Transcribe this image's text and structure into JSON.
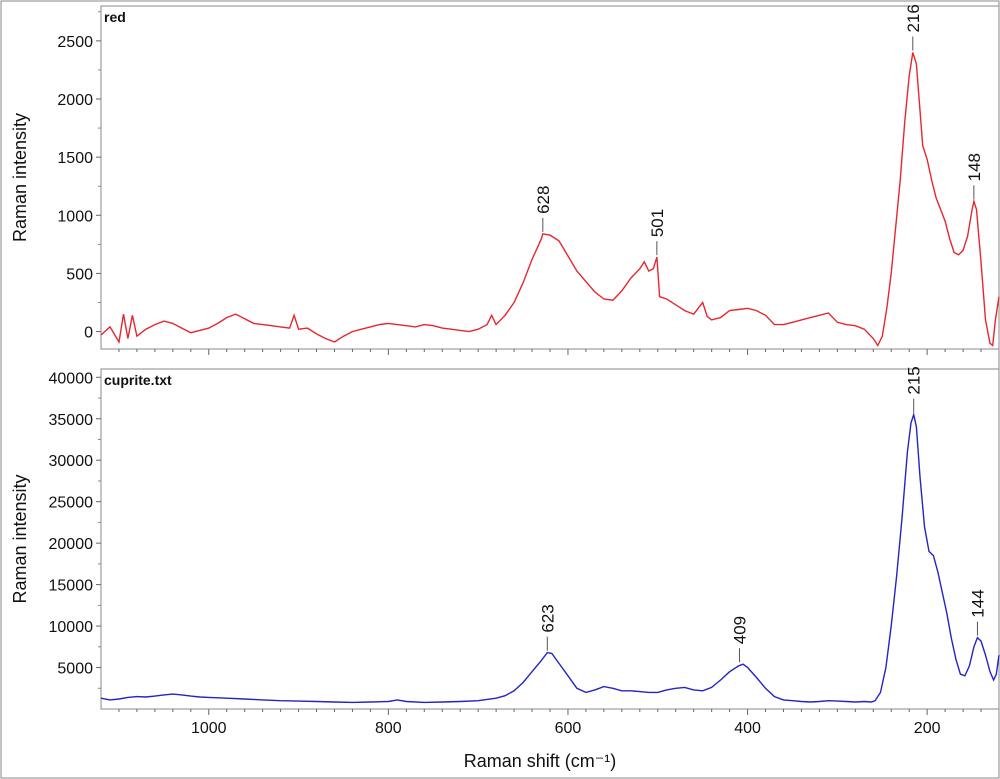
{
  "chart_data": [
    {
      "type": "line",
      "title": "red",
      "xlabel": "",
      "ylabel": "Raman intensity",
      "xlim": [
        1120,
        120
      ],
      "ylim": [
        -150,
        2800
      ],
      "x_reversed": true,
      "xticks": [
        1000,
        800,
        600,
        400,
        200
      ],
      "yticks": [
        0,
        500,
        1000,
        1500,
        2000,
        2500
      ],
      "ytick_labels": [
        "0",
        "500",
        "1000",
        "1500",
        "2000",
        "2500"
      ],
      "series": [
        {
          "color": "#e8262e",
          "points": [
            [
              1120,
              -30
            ],
            [
              1110,
              40
            ],
            [
              1100,
              -90
            ],
            [
              1095,
              150
            ],
            [
              1090,
              -60
            ],
            [
              1085,
              140
            ],
            [
              1080,
              -40
            ],
            [
              1070,
              20
            ],
            [
              1060,
              60
            ],
            [
              1050,
              90
            ],
            [
              1040,
              70
            ],
            [
              1030,
              30
            ],
            [
              1020,
              -10
            ],
            [
              1010,
              10
            ],
            [
              1000,
              30
            ],
            [
              990,
              70
            ],
            [
              980,
              120
            ],
            [
              970,
              150
            ],
            [
              960,
              110
            ],
            [
              950,
              70
            ],
            [
              940,
              60
            ],
            [
              930,
              50
            ],
            [
              920,
              40
            ],
            [
              910,
              30
            ],
            [
              905,
              140
            ],
            [
              900,
              20
            ],
            [
              890,
              30
            ],
            [
              880,
              -20
            ],
            [
              870,
              -60
            ],
            [
              860,
              -90
            ],
            [
              850,
              -40
            ],
            [
              840,
              0
            ],
            [
              830,
              20
            ],
            [
              820,
              40
            ],
            [
              810,
              60
            ],
            [
              800,
              70
            ],
            [
              790,
              60
            ],
            [
              780,
              50
            ],
            [
              770,
              40
            ],
            [
              760,
              60
            ],
            [
              750,
              50
            ],
            [
              740,
              30
            ],
            [
              730,
              20
            ],
            [
              720,
              10
            ],
            [
              710,
              0
            ],
            [
              700,
              20
            ],
            [
              690,
              60
            ],
            [
              685,
              140
            ],
            [
              680,
              60
            ],
            [
              670,
              140
            ],
            [
              660,
              250
            ],
            [
              650,
              420
            ],
            [
              640,
              620
            ],
            [
              630,
              790
            ],
            [
              628,
              840
            ],
            [
              620,
              830
            ],
            [
              610,
              780
            ],
            [
              600,
              650
            ],
            [
              590,
              520
            ],
            [
              580,
              430
            ],
            [
              570,
              340
            ],
            [
              560,
              280
            ],
            [
              550,
              270
            ],
            [
              540,
              350
            ],
            [
              530,
              460
            ],
            [
              520,
              540
            ],
            [
              515,
              600
            ],
            [
              510,
              520
            ],
            [
              505,
              540
            ],
            [
              501,
              640
            ],
            [
              498,
              300
            ],
            [
              490,
              280
            ],
            [
              480,
              230
            ],
            [
              470,
              180
            ],
            [
              460,
              150
            ],
            [
              450,
              250
            ],
            [
              445,
              130
            ],
            [
              440,
              100
            ],
            [
              430,
              120
            ],
            [
              420,
              180
            ],
            [
              410,
              190
            ],
            [
              400,
              200
            ],
            [
              390,
              180
            ],
            [
              380,
              140
            ],
            [
              370,
              60
            ],
            [
              360,
              60
            ],
            [
              350,
              80
            ],
            [
              340,
              100
            ],
            [
              330,
              120
            ],
            [
              320,
              140
            ],
            [
              310,
              160
            ],
            [
              300,
              80
            ],
            [
              290,
              60
            ],
            [
              280,
              50
            ],
            [
              270,
              20
            ],
            [
              260,
              -60
            ],
            [
              255,
              -120
            ],
            [
              250,
              -40
            ],
            [
              245,
              200
            ],
            [
              240,
              500
            ],
            [
              235,
              900
            ],
            [
              230,
              1300
            ],
            [
              225,
              1800
            ],
            [
              220,
              2200
            ],
            [
              216,
              2400
            ],
            [
              212,
              2300
            ],
            [
              208,
              1900
            ],
            [
              205,
              1600
            ],
            [
              200,
              1480
            ],
            [
              195,
              1300
            ],
            [
              190,
              1150
            ],
            [
              185,
              1050
            ],
            [
              180,
              950
            ],
            [
              175,
              800
            ],
            [
              170,
              680
            ],
            [
              165,
              660
            ],
            [
              160,
              700
            ],
            [
              155,
              820
            ],
            [
              150,
              1050
            ],
            [
              148,
              1120
            ],
            [
              145,
              1050
            ],
            [
              140,
              600
            ],
            [
              135,
              100
            ],
            [
              130,
              -100
            ],
            [
              127,
              -120
            ],
            [
              124,
              100
            ],
            [
              120,
              300
            ]
          ]
        }
      ],
      "annotations": [
        {
          "x": 628,
          "y": 840,
          "text": "628"
        },
        {
          "x": 501,
          "y": 640,
          "text": "501"
        },
        {
          "x": 216,
          "y": 2400,
          "text": "216"
        },
        {
          "x": 148,
          "y": 1120,
          "text": "148"
        }
      ]
    },
    {
      "type": "line",
      "title": "cuprite.txt",
      "xlabel": "Raman shift (cm⁻¹)",
      "ylabel": "Raman intensity",
      "xlim": [
        1120,
        120
      ],
      "ylim": [
        0,
        41000
      ],
      "x_reversed": true,
      "xticks": [
        1000,
        800,
        600,
        400,
        200
      ],
      "xtick_labels": [
        "1000",
        "800",
        "600",
        "400",
        "200"
      ],
      "yticks": [
        5000,
        10000,
        15000,
        20000,
        25000,
        30000,
        35000,
        40000
      ],
      "ytick_labels": [
        "5000",
        "10000",
        "15000",
        "20000",
        "25000",
        "30000",
        "35000",
        "40000"
      ],
      "series": [
        {
          "color": "#2323c8",
          "points": [
            [
              1120,
              1300
            ],
            [
              1110,
              1100
            ],
            [
              1100,
              1200
            ],
            [
              1090,
              1400
            ],
            [
              1080,
              1500
            ],
            [
              1070,
              1450
            ],
            [
              1060,
              1550
            ],
            [
              1050,
              1700
            ],
            [
              1040,
              1800
            ],
            [
              1030,
              1700
            ],
            [
              1020,
              1550
            ],
            [
              1010,
              1450
            ],
            [
              1000,
              1400
            ],
            [
              980,
              1300
            ],
            [
              960,
              1200
            ],
            [
              940,
              1100
            ],
            [
              920,
              1000
            ],
            [
              900,
              950
            ],
            [
              880,
              900
            ],
            [
              860,
              850
            ],
            [
              840,
              800
            ],
            [
              820,
              850
            ],
            [
              800,
              900
            ],
            [
              790,
              1100
            ],
            [
              780,
              900
            ],
            [
              760,
              800
            ],
            [
              740,
              850
            ],
            [
              720,
              900
            ],
            [
              700,
              1000
            ],
            [
              680,
              1300
            ],
            [
              670,
              1600
            ],
            [
              660,
              2200
            ],
            [
              650,
              3200
            ],
            [
              640,
              4500
            ],
            [
              630,
              5800
            ],
            [
              623,
              6800
            ],
            [
              618,
              6700
            ],
            [
              610,
              5500
            ],
            [
              600,
              4000
            ],
            [
              590,
              2500
            ],
            [
              580,
              2000
            ],
            [
              570,
              2300
            ],
            [
              560,
              2700
            ],
            [
              550,
              2500
            ],
            [
              540,
              2200
            ],
            [
              530,
              2200
            ],
            [
              520,
              2100
            ],
            [
              510,
              2000
            ],
            [
              500,
              2000
            ],
            [
              490,
              2300
            ],
            [
              480,
              2500
            ],
            [
              470,
              2600
            ],
            [
              460,
              2300
            ],
            [
              450,
              2200
            ],
            [
              440,
              2600
            ],
            [
              430,
              3500
            ],
            [
              420,
              4500
            ],
            [
              410,
              5200
            ],
            [
              405,
              5400
            ],
            [
              400,
              5000
            ],
            [
              390,
              3800
            ],
            [
              380,
              2500
            ],
            [
              370,
              1500
            ],
            [
              360,
              1100
            ],
            [
              350,
              1000
            ],
            [
              340,
              900
            ],
            [
              330,
              850
            ],
            [
              320,
              900
            ],
            [
              310,
              1000
            ],
            [
              300,
              950
            ],
            [
              290,
              900
            ],
            [
              280,
              850
            ],
            [
              270,
              900
            ],
            [
              262,
              850
            ],
            [
              258,
              1000
            ],
            [
              252,
              2000
            ],
            [
              246,
              5000
            ],
            [
              240,
              10000
            ],
            [
              234,
              16000
            ],
            [
              228,
              23000
            ],
            [
              222,
              31000
            ],
            [
              218,
              34500
            ],
            [
              215,
              35500
            ],
            [
              212,
              34000
            ],
            [
              208,
              28000
            ],
            [
              203,
              22000
            ],
            [
              198,
              19000
            ],
            [
              193,
              18500
            ],
            [
              188,
              16500
            ],
            [
              183,
              14000
            ],
            [
              178,
              11500
            ],
            [
              173,
              8500
            ],
            [
              168,
              6000
            ],
            [
              163,
              4200
            ],
            [
              158,
              4000
            ],
            [
              153,
              5200
            ],
            [
              148,
              7500
            ],
            [
              144,
              8600
            ],
            [
              140,
              8200
            ],
            [
              135,
              6500
            ],
            [
              130,
              4500
            ],
            [
              126,
              3500
            ],
            [
              123,
              4200
            ],
            [
              120,
              6500
            ]
          ]
        }
      ],
      "annotations": [
        {
          "x": 623,
          "y": 6800,
          "text": "623"
        },
        {
          "x": 409,
          "y": 5400,
          "text": "409"
        },
        {
          "x": 215,
          "y": 35500,
          "text": "215"
        },
        {
          "x": 144,
          "y": 8600,
          "text": "144"
        }
      ]
    }
  ]
}
